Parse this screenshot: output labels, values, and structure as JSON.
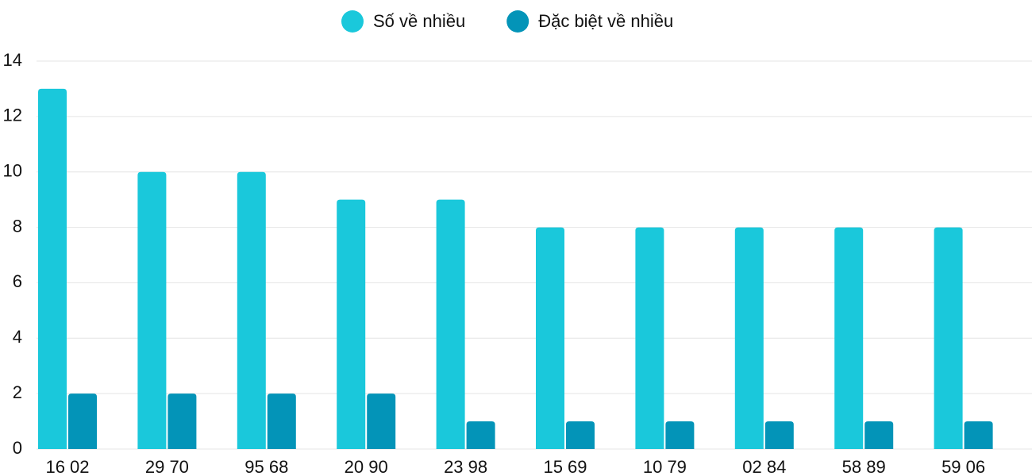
{
  "chart_data": {
    "type": "bar",
    "categories": [
      "16 02",
      "29 70",
      "95 68",
      "20 90",
      "23 98",
      "15 69",
      "10 79",
      "02 84",
      "58 89",
      "59 06"
    ],
    "series": [
      {
        "name": "Số về nhiều",
        "color": "#1ac8db",
        "values": [
          13,
          10,
          10,
          9,
          9,
          8,
          8,
          8,
          8,
          8
        ]
      },
      {
        "name": "Đặc biệt về nhiều",
        "color": "#0394b8",
        "values": [
          2,
          2,
          2,
          2,
          1,
          1,
          1,
          1,
          1,
          1
        ]
      }
    ],
    "ylim": [
      0,
      14
    ],
    "yticks": [
      0,
      2,
      4,
      6,
      8,
      10,
      12,
      14
    ],
    "grid": true,
    "legend": "top"
  }
}
